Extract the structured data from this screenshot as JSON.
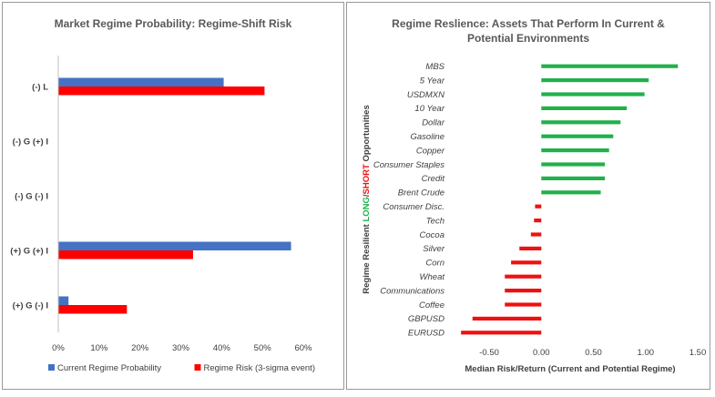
{
  "left_chart": {
    "chart_data": {
      "type": "bar",
      "orientation": "horizontal",
      "title": "Market Regime Probability: Regime-Shift Risk",
      "categories": [
        "(-) L",
        "(-) G (+) I",
        "(-) G (-) I",
        "(+) G (+) I",
        "(+) G (-) I"
      ],
      "series": [
        {
          "name": "Current Regime Probability",
          "color": "#4472c4",
          "values": [
            0.405,
            0.0,
            0.0,
            0.57,
            0.025
          ]
        },
        {
          "name": "Regime Risk (3-sigma event)",
          "color": "#ff0000",
          "values": [
            0.505,
            0.0,
            0.0,
            0.33,
            0.168
          ]
        }
      ],
      "xlim": [
        0,
        0.6
      ],
      "xticks": [
        0,
        0.1,
        0.2,
        0.3,
        0.4,
        0.5,
        0.6
      ],
      "xtick_labels": [
        "0%",
        "10%",
        "20%",
        "30%",
        "40%",
        "50%",
        "60%"
      ],
      "legend": "bottom"
    }
  },
  "right_chart": {
    "chart_data": {
      "type": "bar",
      "orientation": "horizontal",
      "title": "Regime Reslience: Assets That Perform In Current & Potential Environments",
      "title_lines": [
        "Regime Reslience: Assets That Perform In Current &",
        "Potential Environments"
      ],
      "categories": [
        "MBS",
        "5 Year",
        "USDMXN",
        "10 Year",
        "Dollar",
        "Gasoline",
        "Copper",
        "Consumer Staples",
        "Credit",
        "Brent Crude",
        "Consumer Disc.",
        "Tech",
        "Cocoa",
        "Silver",
        "Corn",
        "Wheat",
        "Communications",
        "Coffee",
        "GBPUSD",
        "EURUSD"
      ],
      "values": [
        1.31,
        1.03,
        0.99,
        0.82,
        0.76,
        0.69,
        0.65,
        0.61,
        0.61,
        0.57,
        -0.06,
        -0.07,
        -0.1,
        -0.21,
        -0.29,
        -0.35,
        -0.35,
        -0.35,
        -0.66,
        -0.77
      ],
      "positive_color": "#22b04b",
      "negative_color": "#ee1111",
      "xlim": [
        -0.85,
        1.5
      ],
      "xticks": [
        -0.5,
        0.0,
        0.5,
        1.0,
        1.5
      ],
      "xtick_labels": [
        "-0.50",
        "0.00",
        "0.50",
        "1.00",
        "1.50"
      ],
      "xlabel": "Median Risk/Return (Current and Potential Regime)",
      "ylabel_parts": [
        {
          "text": "Regime Resilient ",
          "color": "#404040"
        },
        {
          "text": "LONG",
          "color": "#22b04b"
        },
        {
          "text": "/",
          "color": "#404040"
        },
        {
          "text": "SHORT",
          "color": "#ee1111"
        },
        {
          "text": " Opportunities",
          "color": "#404040"
        }
      ]
    }
  }
}
